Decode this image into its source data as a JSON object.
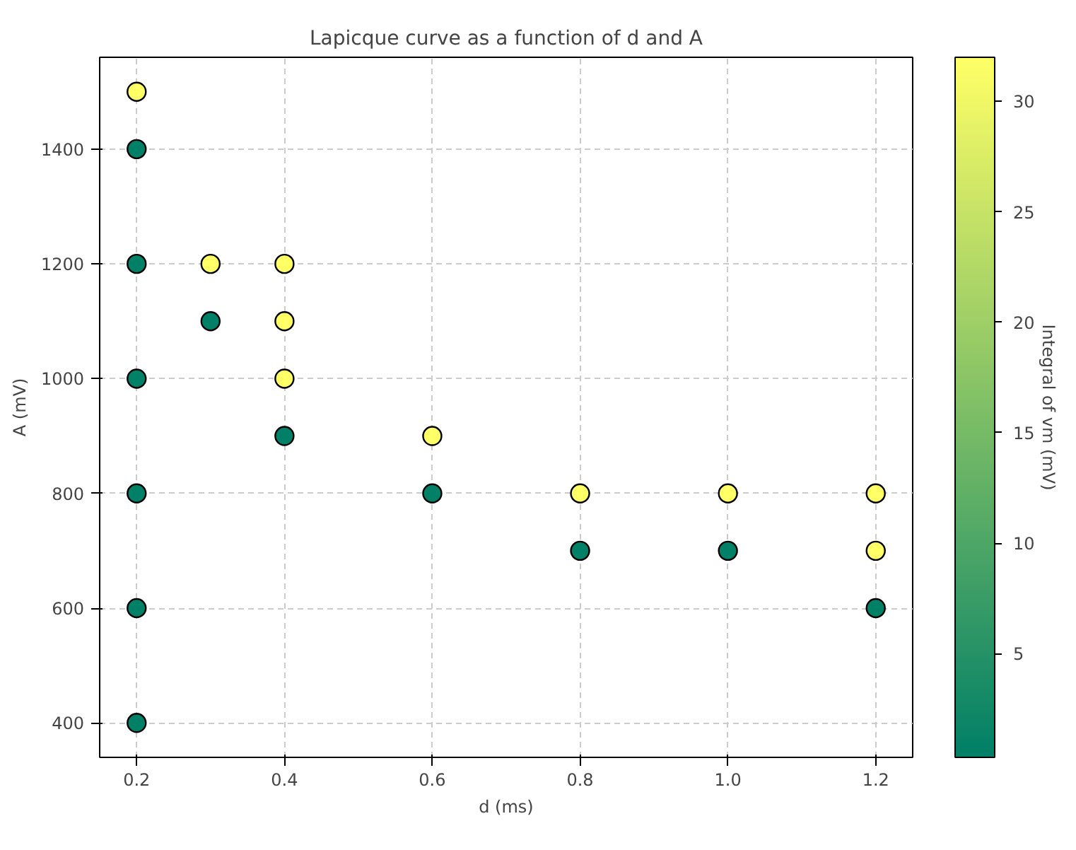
{
  "chart_data": {
    "type": "scatter",
    "title": "Lapicque curve as a function of d and A",
    "xlabel": "d (ms)",
    "ylabel": "A (mV)",
    "clabel": "Integral of vm (mV)",
    "x": [
      0.2,
      0.2,
      0.2,
      0.2,
      0.2,
      0.2,
      0.2,
      0.3,
      0.3,
      0.4,
      0.4,
      0.4,
      0.4,
      0.6,
      0.6,
      0.8,
      0.8,
      1.0,
      1.0,
      1.2,
      1.2,
      1.2
    ],
    "values": [
      1500,
      1400,
      1200,
      1000,
      800,
      600,
      400,
      1200,
      1100,
      1200,
      1100,
      1000,
      900,
      900,
      800,
      800,
      700,
      800,
      700,
      800,
      700,
      600
    ],
    "cvalues": [
      32,
      0.3,
      0.3,
      0.3,
      0.3,
      0.3,
      0.3,
      32,
      0.3,
      32,
      32,
      32,
      0.3,
      32,
      0.3,
      32,
      0.3,
      32,
      0.3,
      32,
      32,
      0.3
    ],
    "clim": [
      0.3,
      32
    ],
    "cticks": [
      5,
      10,
      15,
      20,
      25,
      30
    ],
    "xlim": [
      0.15,
      1.25
    ],
    "xticks": [
      0.2,
      0.4,
      0.6,
      0.8,
      {
        "value": 1.0,
        "label": "1.0"
      },
      1.2
    ],
    "ylim": [
      340,
      1560
    ],
    "yticks": [
      400,
      600,
      800,
      1000,
      1200,
      1400
    ],
    "grid": true,
    "marker": "circle"
  }
}
